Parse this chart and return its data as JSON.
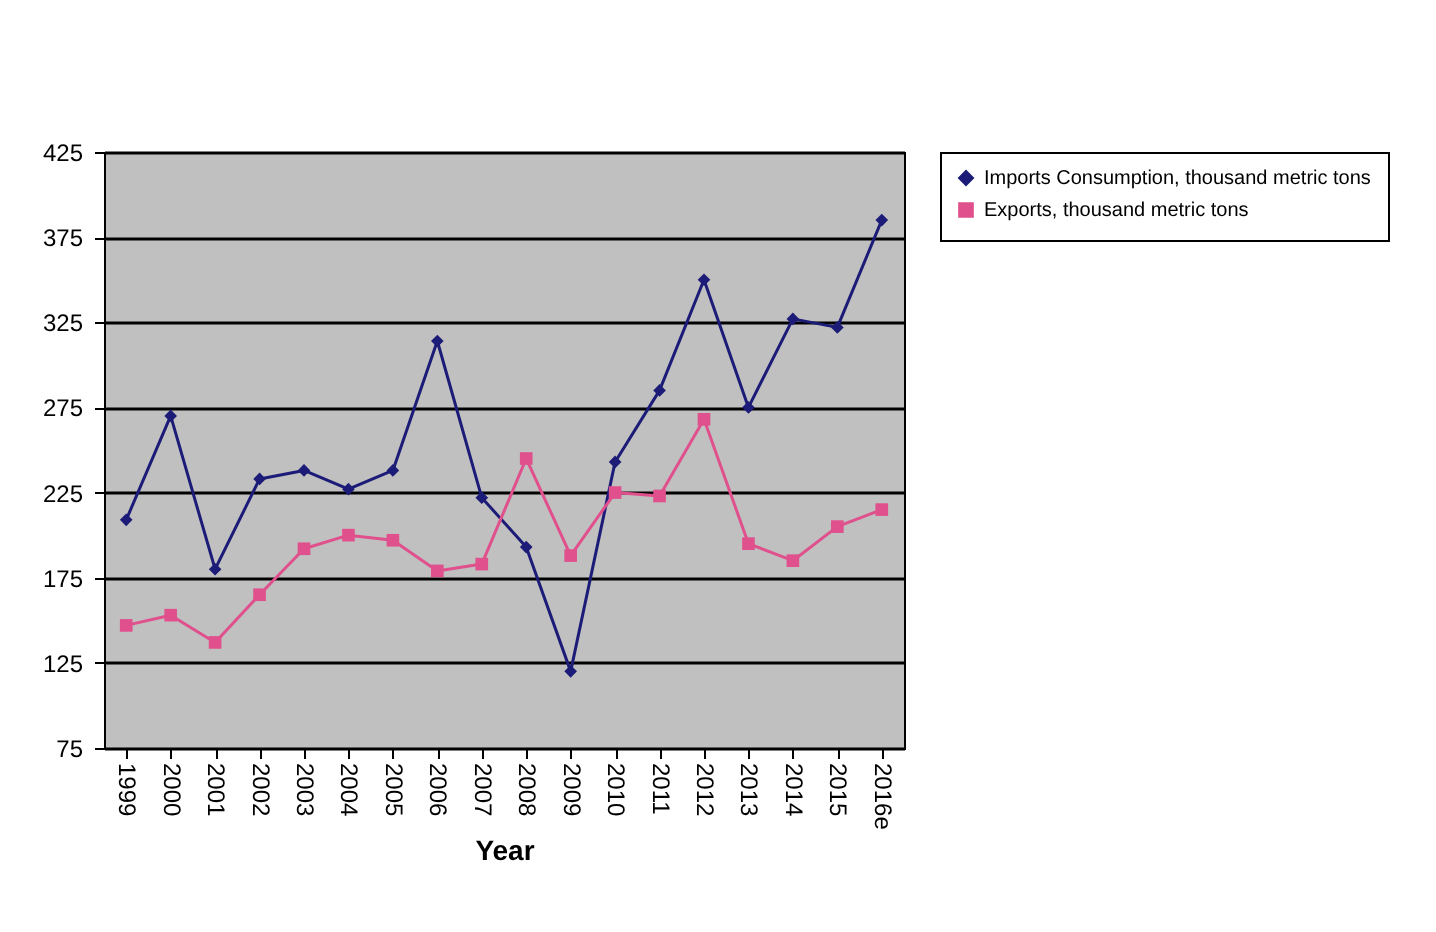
{
  "chart_data": {
    "type": "line",
    "xlabel": "Year",
    "categories": [
      "1999",
      "2000",
      "2001",
      "2002",
      "2003",
      "2004",
      "2005",
      "2006",
      "2007",
      "2008",
      "2009",
      "2010",
      "2011",
      "2012",
      "2013",
      "2014",
      "2015",
      "2016e"
    ],
    "series": [
      {
        "name": "Imports Consumption, thousand metric tons",
        "color": "#1c1c78",
        "marker": "diamond",
        "values": [
          209,
          270,
          180,
          233,
          238,
          227,
          238,
          314,
          222,
          193,
          120,
          243,
          285,
          350,
          275,
          327,
          322,
          385
        ]
      },
      {
        "name": "Exports, thousand metric tons",
        "color": "#e0508c",
        "marker": "square",
        "values": [
          147,
          153,
          137,
          165,
          192,
          200,
          197,
          179,
          183,
          245,
          188,
          225,
          223,
          268,
          195,
          185,
          205,
          215
        ]
      }
    ],
    "ylim": [
      75,
      425
    ],
    "yticks": [
      75,
      125,
      175,
      225,
      275,
      325,
      375,
      425
    ],
    "grid": "y",
    "legend": "right"
  }
}
